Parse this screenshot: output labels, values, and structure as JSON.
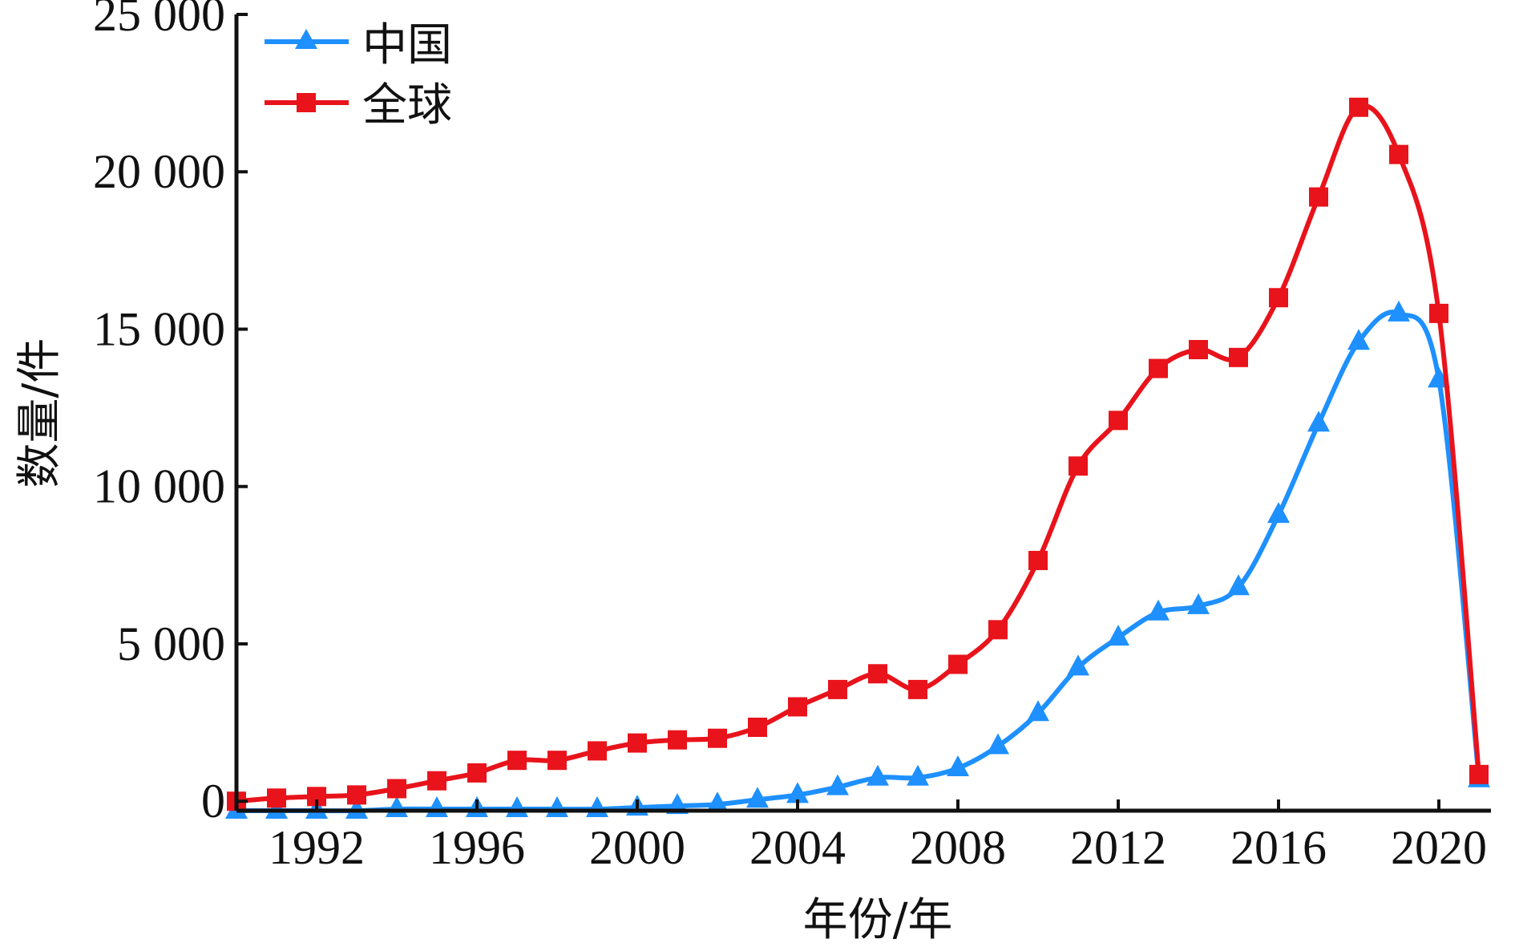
{
  "chart_data": {
    "type": "line",
    "title": "",
    "xlabel": "年份/年",
    "ylabel": "数量/件",
    "xlim": [
      1990,
      2021.3
    ],
    "ylim": [
      -300,
      25000
    ],
    "x_ticks": [
      1992,
      1996,
      2000,
      2004,
      2008,
      2012,
      2016,
      2020
    ],
    "x_tick_labels": [
      "1992",
      "1996",
      "2000",
      "2004",
      "2008",
      "2012",
      "2016",
      "2020"
    ],
    "y_ticks": [
      0,
      5000,
      10000,
      15000,
      20000,
      25000
    ],
    "y_tick_labels": [
      "0",
      "5 000",
      "10 000",
      "15 000",
      "20 000",
      "25 000"
    ],
    "grid": false,
    "legend_position": "top-left",
    "x": [
      1990,
      1991,
      1992,
      1993,
      1994,
      1995,
      1996,
      1997,
      1998,
      1999,
      2000,
      2001,
      2002,
      2003,
      2004,
      2005,
      2006,
      2007,
      2008,
      2009,
      2010,
      2011,
      2012,
      2013,
      2014,
      2015,
      2016,
      2017,
      2018,
      2019,
      2020,
      2021
    ],
    "series": [
      {
        "name": "中国",
        "color": "#1E90FF",
        "marker": "triangle",
        "values": [
          -300,
          -300,
          -300,
          -300,
          -250,
          -250,
          -250,
          -250,
          -250,
          -250,
          -200,
          -150,
          -100,
          50,
          200,
          450,
          750,
          750,
          1050,
          1750,
          2800,
          4250,
          5200,
          6000,
          6200,
          6800,
          9100,
          12000,
          14600,
          15500,
          13400,
          700
        ]
      },
      {
        "name": "全球",
        "color": "#E8131B",
        "marker": "square",
        "values": [
          0,
          100,
          150,
          200,
          400,
          650,
          900,
          1300,
          1300,
          1600,
          1850,
          1950,
          2000,
          2350,
          3000,
          3550,
          4050,
          3550,
          4350,
          5450,
          7650,
          10650,
          12100,
          13750,
          14350,
          14100,
          16000,
          19200,
          22050,
          20550,
          15500,
          850
        ]
      }
    ]
  }
}
